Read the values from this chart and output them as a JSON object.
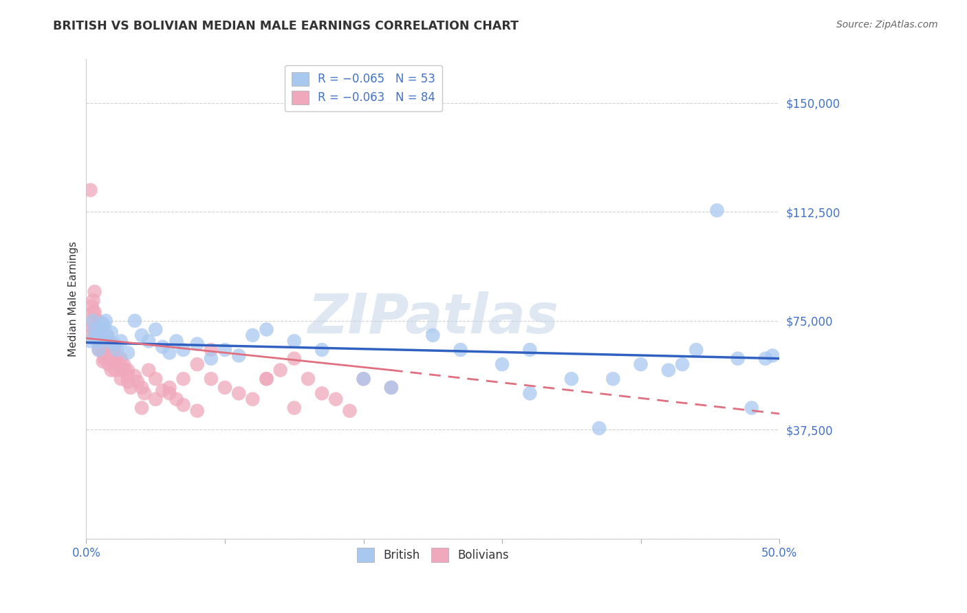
{
  "title": "BRITISH VS BOLIVIAN MEDIAN MALE EARNINGS CORRELATION CHART",
  "source": "Source: ZipAtlas.com",
  "ylabel": "Median Male Earnings",
  "xlim": [
    0.0,
    0.5
  ],
  "ylim": [
    0,
    165000
  ],
  "yticks": [
    0,
    37500,
    75000,
    112500,
    150000
  ],
  "ytick_labels": [
    "",
    "$37,500",
    "$75,000",
    "$112,500",
    "$150,000"
  ],
  "xticks": [
    0.0,
    0.1,
    0.2,
    0.3,
    0.4,
    0.5
  ],
  "xtick_labels": [
    "0.0%",
    "",
    "",
    "",
    "",
    "50.0%"
  ],
  "british_R": -0.065,
  "british_N": 53,
  "bolivian_R": -0.063,
  "bolivian_N": 84,
  "blue_color": "#a8c8f0",
  "pink_color": "#f0a8bc",
  "blue_line_color": "#3060c0",
  "pink_line_color": "#e07080",
  "watermark": "ZIPatlas",
  "legend_r_color": "#4472C4",
  "brit_x": [
    0.003,
    0.005,
    0.006,
    0.007,
    0.008,
    0.009,
    0.01,
    0.011,
    0.012,
    0.013,
    0.014,
    0.015,
    0.016,
    0.018,
    0.02,
    0.022,
    0.025,
    0.03,
    0.035,
    0.04,
    0.045,
    0.05,
    0.055,
    0.06,
    0.065,
    0.07,
    0.08,
    0.09,
    0.1,
    0.11,
    0.12,
    0.13,
    0.15,
    0.17,
    0.2,
    0.22,
    0.25,
    0.27,
    0.3,
    0.32,
    0.35,
    0.37,
    0.4,
    0.42,
    0.44,
    0.455,
    0.47,
    0.48,
    0.49,
    0.495,
    0.32,
    0.38,
    0.43
  ],
  "brit_y": [
    68000,
    75000,
    72000,
    70000,
    68000,
    65000,
    70000,
    72000,
    74000,
    73000,
    75000,
    70000,
    68000,
    71000,
    67000,
    65000,
    68000,
    64000,
    75000,
    70000,
    68000,
    72000,
    66000,
    64000,
    68000,
    65000,
    67000,
    62000,
    65000,
    63000,
    70000,
    72000,
    68000,
    65000,
    55000,
    52000,
    70000,
    65000,
    60000,
    65000,
    55000,
    38000,
    60000,
    58000,
    65000,
    113000,
    62000,
    45000,
    62000,
    63000,
    50000,
    55000,
    60000
  ],
  "boliv_x": [
    0.002,
    0.003,
    0.004,
    0.005,
    0.005,
    0.006,
    0.006,
    0.007,
    0.007,
    0.008,
    0.008,
    0.009,
    0.009,
    0.01,
    0.01,
    0.011,
    0.011,
    0.012,
    0.012,
    0.013,
    0.013,
    0.014,
    0.014,
    0.015,
    0.015,
    0.016,
    0.016,
    0.017,
    0.018,
    0.018,
    0.019,
    0.02,
    0.02,
    0.021,
    0.022,
    0.023,
    0.025,
    0.025,
    0.027,
    0.028,
    0.03,
    0.03,
    0.032,
    0.035,
    0.037,
    0.04,
    0.042,
    0.045,
    0.05,
    0.055,
    0.06,
    0.065,
    0.07,
    0.08,
    0.09,
    0.1,
    0.11,
    0.12,
    0.13,
    0.14,
    0.15,
    0.16,
    0.17,
    0.18,
    0.19,
    0.2,
    0.22,
    0.04,
    0.05,
    0.06,
    0.07,
    0.08,
    0.09,
    0.03,
    0.025,
    0.02,
    0.015,
    0.01,
    0.008,
    0.006,
    0.004,
    0.003,
    0.15,
    0.13
  ],
  "boliv_y": [
    70000,
    75000,
    73000,
    78000,
    82000,
    71000,
    85000,
    69000,
    72000,
    68000,
    75000,
    67000,
    65000,
    70000,
    68000,
    72000,
    65000,
    61000,
    66000,
    64000,
    62000,
    68000,
    65000,
    63000,
    70000,
    68000,
    60000,
    65000,
    62000,
    58000,
    63000,
    65000,
    60000,
    58000,
    62000,
    60000,
    58000,
    55000,
    60000,
    58000,
    56000,
    54000,
    52000,
    56000,
    54000,
    52000,
    50000,
    58000,
    55000,
    51000,
    50000,
    48000,
    46000,
    44000,
    55000,
    52000,
    50000,
    48000,
    55000,
    58000,
    62000,
    55000,
    50000,
    48000,
    44000,
    55000,
    52000,
    45000,
    48000,
    52000,
    55000,
    60000,
    65000,
    58000,
    62000,
    65000,
    68000,
    72000,
    75000,
    78000,
    80000,
    120000,
    45000,
    55000
  ]
}
